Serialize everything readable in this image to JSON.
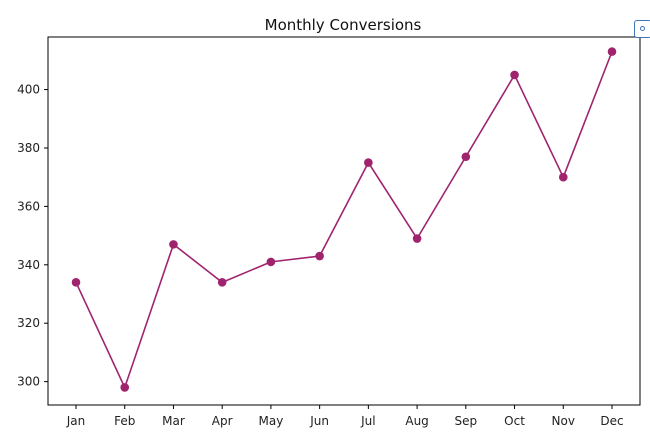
{
  "chart_data": {
    "type": "line",
    "title": "Monthly Conversions",
    "xlabel": "",
    "ylabel": "",
    "categories": [
      "Jan",
      "Feb",
      "Mar",
      "Apr",
      "May",
      "Jun",
      "Jul",
      "Aug",
      "Sep",
      "Oct",
      "Nov",
      "Dec"
    ],
    "values": [
      334,
      298,
      347,
      334,
      341,
      343,
      375,
      349,
      377,
      405,
      370,
      413
    ],
    "ylim": [
      292,
      418
    ],
    "yticks": [
      300,
      320,
      340,
      360,
      380,
      400
    ],
    "grid": false,
    "legend": "none",
    "marker": "circle"
  },
  "colors": {
    "series": "#a0236e",
    "axes": "#000000",
    "expand_icon": "#3f73b8"
  },
  "icons": {
    "expand": "expand-icon"
  }
}
